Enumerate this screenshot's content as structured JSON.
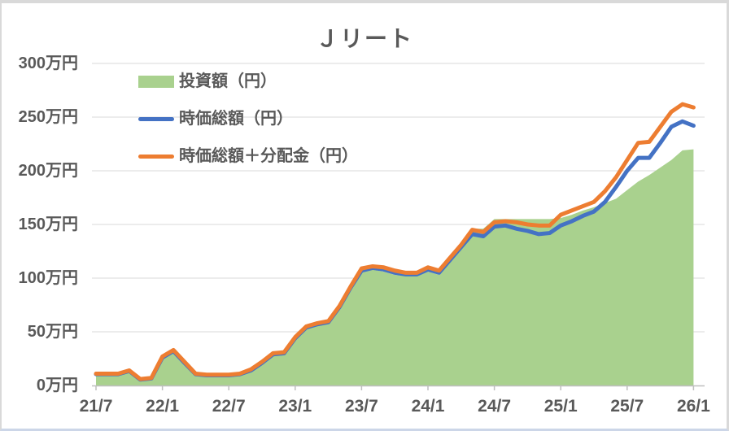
{
  "chart_style": {
    "background": "#ffffff",
    "frame_border_color": "#d9d9d9",
    "frame_bottom_color": "#ccd6e8",
    "text_color": "#595959",
    "gridline_color": "#d9d9d9",
    "axis_line_color": "#bfbfbf"
  },
  "chart_data": {
    "type": "area",
    "title": "Ｊリート",
    "grid": true,
    "legend_position": "top-left-inside",
    "y_unit": "万円",
    "ylim": [
      0,
      300
    ],
    "y_tick_labels": [
      "0万円",
      "50万円",
      "100万円",
      "150万円",
      "200万円",
      "250万円",
      "300万円"
    ],
    "x_tick_labels": [
      "21/7",
      "22/1",
      "22/7",
      "23/1",
      "23/7",
      "24/1",
      "24/7",
      "25/1",
      "25/7",
      "26/1"
    ],
    "x": [
      "21/7",
      "21/8",
      "21/9",
      "21/10",
      "21/11",
      "21/12",
      "22/1",
      "22/2",
      "22/3",
      "22/4",
      "22/5",
      "22/6",
      "22/7",
      "22/8",
      "22/9",
      "22/10",
      "22/11",
      "22/12",
      "23/1",
      "23/2",
      "23/3",
      "23/4",
      "23/5",
      "23/6",
      "23/7",
      "23/8",
      "23/9",
      "23/10",
      "23/11",
      "23/12",
      "24/1",
      "24/2",
      "24/3",
      "24/4",
      "24/5",
      "24/6",
      "24/7",
      "24/8",
      "24/9",
      "24/10",
      "24/11",
      "24/12",
      "25/1",
      "25/2",
      "25/3",
      "25/4",
      "25/5",
      "25/6",
      "25/7",
      "25/8",
      "25/9",
      "25/10",
      "25/11",
      "25/12",
      "26/1"
    ],
    "series": [
      {
        "name": "投資額（円）",
        "type": "area",
        "color": "#a9d18e",
        "values": [
          10,
          10,
          10,
          13,
          5,
          6,
          25,
          31,
          20,
          10,
          9,
          9,
          9,
          10,
          13,
          20,
          28,
          29,
          43,
          53,
          56,
          58,
          72,
          90,
          105,
          108,
          106,
          103,
          102,
          102,
          106,
          103,
          115,
          127,
          146,
          146,
          155,
          155,
          155,
          155,
          155,
          155,
          156,
          159,
          163,
          166,
          170,
          174,
          182,
          190,
          196,
          203,
          210,
          219,
          220
        ]
      },
      {
        "name": "時価総額（円）",
        "type": "line",
        "color": "#4472c4",
        "values": [
          10.5,
          10.5,
          10.5,
          13.5,
          5.5,
          6.5,
          26,
          32,
          21,
          10.5,
          9.5,
          9.5,
          9.5,
          10.5,
          14,
          21,
          29,
          30,
          44,
          54,
          57,
          59,
          73,
          91,
          107,
          109.5,
          108,
          105,
          103.5,
          103.5,
          108,
          105,
          117,
          129,
          141,
          139,
          148,
          149,
          146,
          144,
          141,
          142,
          149,
          153,
          158,
          162,
          171,
          185,
          200,
          212,
          212,
          226,
          241,
          246,
          242
        ]
      },
      {
        "name": "時価総額＋分配金（円）",
        "type": "line",
        "color": "#ed7d31",
        "values": [
          11,
          11,
          11,
          14,
          6,
          7,
          27,
          33,
          22,
          11,
          10,
          10,
          10,
          11,
          15,
          22,
          30,
          31,
          45,
          55,
          58,
          60,
          74,
          92,
          109,
          111,
          110,
          107,
          105,
          105,
          110,
          107,
          119,
          131,
          145,
          143,
          152,
          153,
          152,
          150,
          149,
          149,
          159,
          163,
          167,
          171,
          181,
          194,
          210,
          226,
          227,
          241,
          255,
          262,
          259
        ]
      }
    ]
  }
}
